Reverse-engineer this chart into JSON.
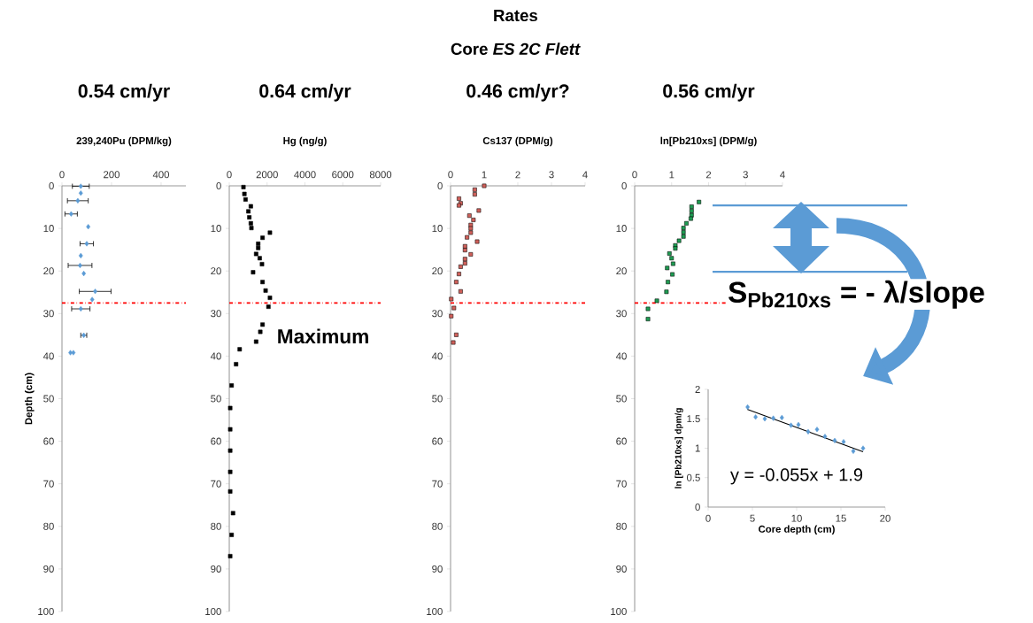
{
  "chart_data": [
    {
      "type": "scatter",
      "title": "0.54 cm/yr",
      "xlabel": "239,240Pu  (DPM/kg)",
      "ylabel": "Depth (cm)",
      "color": "#5b9bd5",
      "marker": "diamond",
      "x": [
        76,
        76,
        64,
        37,
        106,
        100,
        76,
        73,
        88,
        134,
        122,
        76,
        88,
        34,
        46
      ],
      "values": [
        0.1,
        1.7,
        3.5,
        6.6,
        9.6,
        13.6,
        16.4,
        18.7,
        20.6,
        24.8,
        26.7,
        28.9,
        35.1,
        39.2,
        39.2
      ],
      "xerrors": [
        34,
        null,
        42,
        25,
        null,
        27,
        null,
        48,
        null,
        64,
        null,
        37,
        12,
        null,
        null
      ],
      "xlim": [
        0,
        500
      ],
      "xticks": [
        0,
        200,
        400
      ],
      "ylim": [
        100,
        0
      ],
      "yticks": [
        0,
        10,
        20,
        30,
        40,
        50,
        60,
        70,
        80,
        90,
        100
      ],
      "ref_lines": [
        {
          "axis": "y",
          "value": 27.5,
          "color": "#ff0000",
          "line_style": "dashdot"
        }
      ],
      "annotations": [
        "Rates",
        "Core *ES 2C Flett*"
      ]
    },
    {
      "type": "scatter",
      "title": "0.64 cm/yr",
      "xlabel": "Hg (ng/g)",
      "color": "#000000",
      "marker": "square",
      "x": [
        750,
        800,
        860,
        1140,
        1010,
        1060,
        1140,
        1170,
        2150,
        1760,
        1530,
        1530,
        1420,
        1610,
        1730,
        1260,
        1760,
        1920,
        2150,
        2070,
        1760,
        1640,
        1420,
        550,
        360,
        125,
        50,
        50,
        50,
        50,
        50,
        200,
        125,
        50
      ],
      "values": [
        0.3,
        1.9,
        3.2,
        4.8,
        6.0,
        7.4,
        8.8,
        9.9,
        11,
        12.2,
        13.6,
        14.6,
        16,
        17,
        18.4,
        20.3,
        22.6,
        24.6,
        26.3,
        28.4,
        32.6,
        34.3,
        36.6,
        38.4,
        41.9,
        46.9,
        52.2,
        57.2,
        62.2,
        67.2,
        71.8,
        76.9,
        82,
        87
      ],
      "xlim": [
        0,
        8000
      ],
      "xticks": [
        0,
        2000,
        4000,
        6000,
        8000
      ],
      "ylim": [
        100,
        0
      ],
      "yticks": [
        0,
        10,
        20,
        30,
        40,
        50,
        60,
        70,
        80,
        90,
        100
      ],
      "ref_lines": [
        {
          "axis": "y",
          "value": 27.5,
          "color": "#ff0000",
          "line_style": "dashdot"
        }
      ],
      "annotations": [
        "Maximum"
      ]
    },
    {
      "type": "scatter",
      "title": "0.46 cm/yr?",
      "xlabel": "Cs137 (DPM/g)",
      "color": "#d0605a",
      "marker": "square",
      "x": [
        1.0,
        0.72,
        0.72,
        0.25,
        0.3,
        0.25,
        0.84,
        0.56,
        0.68,
        0.6,
        0.6,
        0.6,
        0.49,
        0.79,
        0.43,
        0.43,
        0.6,
        0.43,
        0.43,
        0.3,
        0.25,
        0.17,
        0.3,
        0.02,
        0.1,
        0.02,
        0.17,
        0.08
      ],
      "values": [
        0,
        0.9,
        2.0,
        3.0,
        4.1,
        4.6,
        5.8,
        7.0,
        8.0,
        9.2,
        10,
        11,
        12.1,
        13.1,
        14.2,
        15.1,
        16.1,
        17.2,
        18.2,
        19,
        20.7,
        22.6,
        24.8,
        26.6,
        28.7,
        30.6,
        35,
        36.8
      ],
      "xlim": [
        0,
        4
      ],
      "xticks": [
        0,
        1,
        2,
        3,
        4
      ],
      "ylim": [
        100,
        0
      ],
      "yticks": [
        0,
        10,
        20,
        30,
        40,
        50,
        60,
        70,
        80,
        90,
        100
      ],
      "ref_lines": [
        {
          "axis": "y",
          "value": 27.5,
          "color": "#ff0000",
          "line_style": "dashdot"
        }
      ]
    },
    {
      "type": "scatter",
      "title": "0.56 cm/yr",
      "xlabel": "ln[Pb210xs] (DPM/g)",
      "color": "#1e9c52",
      "marker": "square",
      "x": [
        1.74,
        1.54,
        1.54,
        1.54,
        1.52,
        1.4,
        1.32,
        1.32,
        1.32,
        1.2,
        1.1,
        1.1,
        0.94,
        1.0,
        1.04,
        0.88,
        1.02,
        0.9,
        0.86,
        0.6,
        0.36,
        0.36
      ],
      "values": [
        3.8,
        4.9,
        5.9,
        6.9,
        7.7,
        8.8,
        9.9,
        10.9,
        11.9,
        12.9,
        14,
        14.7,
        15.9,
        17,
        18.3,
        19.3,
        20.8,
        22.6,
        24.9,
        27,
        28.9,
        31.3
      ],
      "xlim": [
        0,
        4
      ],
      "xticks": [
        0,
        1,
        2,
        3,
        4
      ],
      "ylim": [
        100,
        0
      ],
      "yticks": [
        0,
        10,
        20,
        30,
        40,
        50,
        60,
        70,
        80,
        90,
        100
      ],
      "ref_lines": [
        {
          "axis": "y",
          "value": 27.5,
          "color": "#ff0000",
          "line_style": "dashdot"
        },
        {
          "axis": "y",
          "value": 4.6,
          "color": "#5b9bd5",
          "line_style": "solid"
        },
        {
          "axis": "y",
          "value": 20.2,
          "color": "#5b9bd5",
          "line_style": "solid"
        }
      ],
      "annotations": [
        "S$_{Pb210xs}$ = - λ/slope"
      ]
    },
    {
      "type": "scatter",
      "xlabel": "Core depth (cm)",
      "ylabel": "ln [Pb210xs]  dpm/g",
      "series": [
        {
          "type": "scatter",
          "color": "#5b9bd5",
          "marker": "diamond",
          "x": [
            4.46,
            5.36,
            6.4,
            7.36,
            8.33,
            9.36,
            10.2,
            11.3,
            12.3,
            13.2,
            14.3,
            15.3,
            16.4,
            17.5
          ],
          "values": [
            1.7,
            1.53,
            1.5,
            1.51,
            1.52,
            1.39,
            1.4,
            1.28,
            1.32,
            1.2,
            1.13,
            1.11,
            0.95,
            1.0
          ]
        },
        {
          "type": "line",
          "color": "#000000",
          "x": [
            4.4,
            17.5
          ],
          "values": [
            1.66,
            0.94
          ]
        }
      ],
      "xlim": [
        0,
        20
      ],
      "xticks": [
        0,
        5,
        10,
        15,
        20
      ],
      "ylim": [
        0,
        2
      ],
      "yticks": [
        0,
        0.5,
        1,
        1.5,
        2
      ],
      "annotations": [
        "y = -0.055x + 1.9"
      ]
    }
  ]
}
